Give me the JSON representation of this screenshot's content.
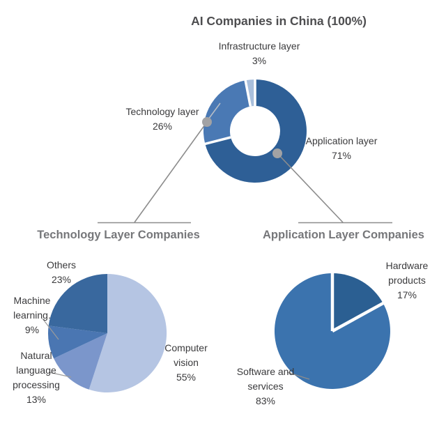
{
  "figure": {
    "overview_chart": {
      "title": "AI Companies in China (100%)",
      "labels": {
        "infrastructure": "Infrastructure layer\n3%",
        "technology": "Technology layer\n26%",
        "application": "Application layer\n71%"
      }
    },
    "technology_chart": {
      "title": "Technology Layer Companies",
      "labels": {
        "others": "Others\n23%",
        "machine_learning": "Machine\nlearning.\n9%",
        "natural_language_processing": "Natural\nlanguage\nprocessing\n13%",
        "computer_vision": "Computer\nvision\n55%"
      }
    },
    "application_chart": {
      "title": "Application Layer Companies",
      "labels": {
        "hardware": "Hardware\nproducts\n17%",
        "software": "Software and\nservices\n83%"
      }
    }
  },
  "colors": {
    "label_dark": "#3A3A3C",
    "title_gray": "#76777A",
    "main_title_gray": "#4E4E50",
    "connector": "#8C8C8C",
    "leader_light": "#B9BFC7",
    "leader_gray": "#9B9B9B",
    "leader_dot": "#A2A2A4",
    "separator_white": "#FFFFFF"
  },
  "chart_data": [
    {
      "id": "overview",
      "type": "pie",
      "subtype": "donut",
      "title": "AI Companies in China (100%)",
      "categories": [
        "Application layer",
        "Technology layer",
        "Infrastructure layer"
      ],
      "values": [
        71,
        26,
        3
      ],
      "unit": "%",
      "colors": [
        "#2E5F96",
        "#4A79B4",
        "#A9BFDC"
      ],
      "start_angle_deg": 0,
      "direction": "clockwise",
      "hole_ratio": 0.49,
      "legend": "none",
      "data_labels": "category name + percentage, outside with leader dots"
    },
    {
      "id": "technology",
      "type": "pie",
      "subtype": "pie",
      "title": "Technology Layer Companies",
      "categories": [
        "Computer vision",
        "Natural language processing",
        "Machine learning",
        "Others"
      ],
      "values": [
        55,
        13,
        9,
        23
      ],
      "unit": "%",
      "colors": [
        "#B5C5E3",
        "#7B96CB",
        "#4A76B2",
        "#39689E"
      ],
      "start_angle_deg": 0,
      "direction": "clockwise",
      "legend": "none",
      "data_labels": "category name + percentage, outside with leader lines"
    },
    {
      "id": "application",
      "type": "pie",
      "subtype": "pie",
      "title": "Application Layer Companies",
      "categories": [
        "Hardware products",
        "Software and services"
      ],
      "values": [
        17,
        83
      ],
      "unit": "%",
      "colors": [
        "#2B5F92",
        "#3B73AE"
      ],
      "start_angle_deg": 0,
      "direction": "clockwise",
      "legend": "none",
      "data_labels": "category name + percentage, outside with leader lines"
    }
  ]
}
